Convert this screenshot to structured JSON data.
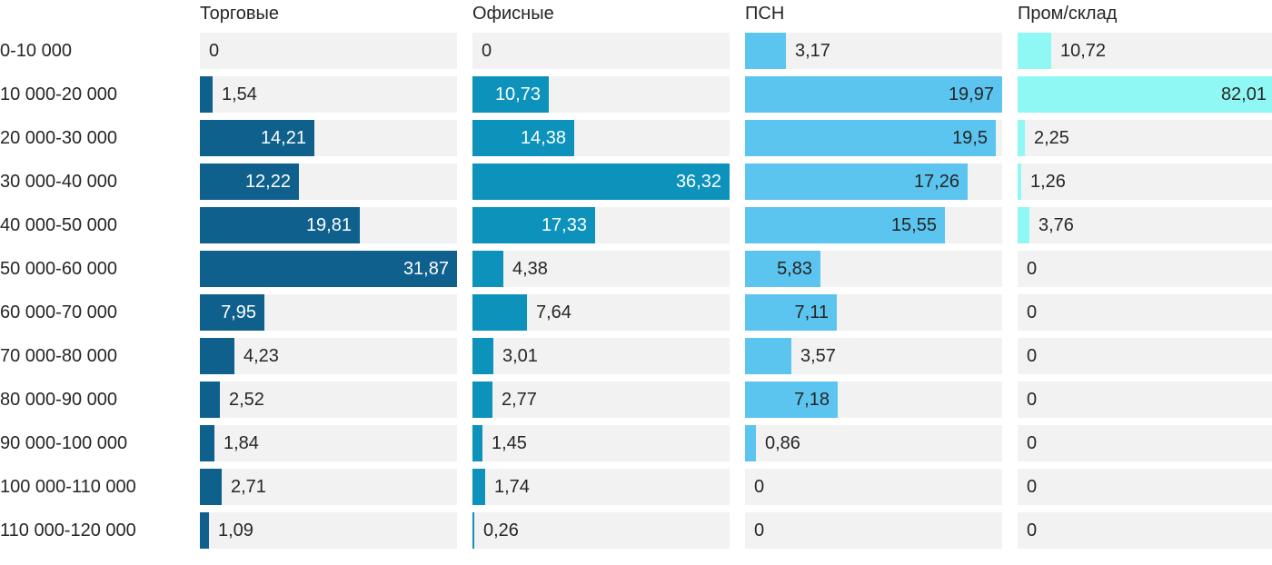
{
  "chart_data": {
    "type": "bar",
    "orientation": "horizontal",
    "title": "",
    "categories": [
      "0-10 000",
      "10 000-20 000",
      "20 000-30 000",
      "30 000-40 000",
      "40 000-50 000",
      "50 000-60 000",
      "60 000-70 000",
      "70 000-80 000",
      "80 000-90 000",
      "90 000-100 000",
      "100 000-110 000",
      "110 000-120 000"
    ],
    "series": [
      {
        "id": "torgovye",
        "name": "Торговые",
        "color": "#0f608c",
        "inside_label_color": "#ffffff",
        "values": [
          0,
          1.54,
          14.21,
          12.22,
          19.81,
          31.87,
          7.95,
          4.23,
          2.52,
          1.84,
          2.71,
          1.09
        ],
        "labels": [
          "0",
          "1,54",
          "14,21",
          "12,22",
          "19,81",
          "31,87",
          "7,95",
          "4,23",
          "2,52",
          "1,84",
          "2,71",
          "1,09"
        ]
      },
      {
        "id": "ofisnye",
        "name": "Офисные",
        "color": "#0d92bc",
        "inside_label_color": "#ffffff",
        "values": [
          0,
          10.73,
          14.38,
          36.32,
          17.33,
          4.38,
          7.64,
          3.01,
          2.77,
          1.45,
          1.74,
          0.26
        ],
        "labels": [
          "0",
          "10,73",
          "14,38",
          "36,32",
          "17,33",
          "4,38",
          "7,64",
          "3,01",
          "2,77",
          "1,45",
          "1,74",
          "0,26"
        ]
      },
      {
        "id": "psn",
        "name": "ПСН",
        "color": "#5bc4ef",
        "inside_label_color": "#262626",
        "values": [
          3.17,
          19.97,
          19.5,
          17.26,
          15.55,
          5.83,
          7.11,
          3.57,
          7.18,
          0.86,
          0,
          0
        ],
        "labels": [
          "3,17",
          "19,97",
          "19,5",
          "17,26",
          "15,55",
          "5,83",
          "7,11",
          "3,57",
          "7,18",
          "0,86",
          "0",
          "0"
        ]
      },
      {
        "id": "prom-sklad",
        "name": "Пром/склад",
        "color": "#90f8f4",
        "inside_label_color": "#262626",
        "values": [
          10.72,
          82.01,
          2.25,
          1.26,
          3.76,
          0,
          0,
          0,
          0,
          0,
          0,
          0
        ],
        "labels": [
          "10,72",
          "82,01",
          "2,25",
          "1,26",
          "3,76",
          "0",
          "0",
          "0",
          "0",
          "0",
          "0",
          "0"
        ]
      }
    ],
    "track_color": "#f2f2f2",
    "value_text_color": "#262626",
    "label_text_color": "#262626",
    "layout_hint": {
      "scale": "per-series; series max value spans full track width",
      "grid": "off",
      "legend": "column headers above each bar group"
    }
  }
}
